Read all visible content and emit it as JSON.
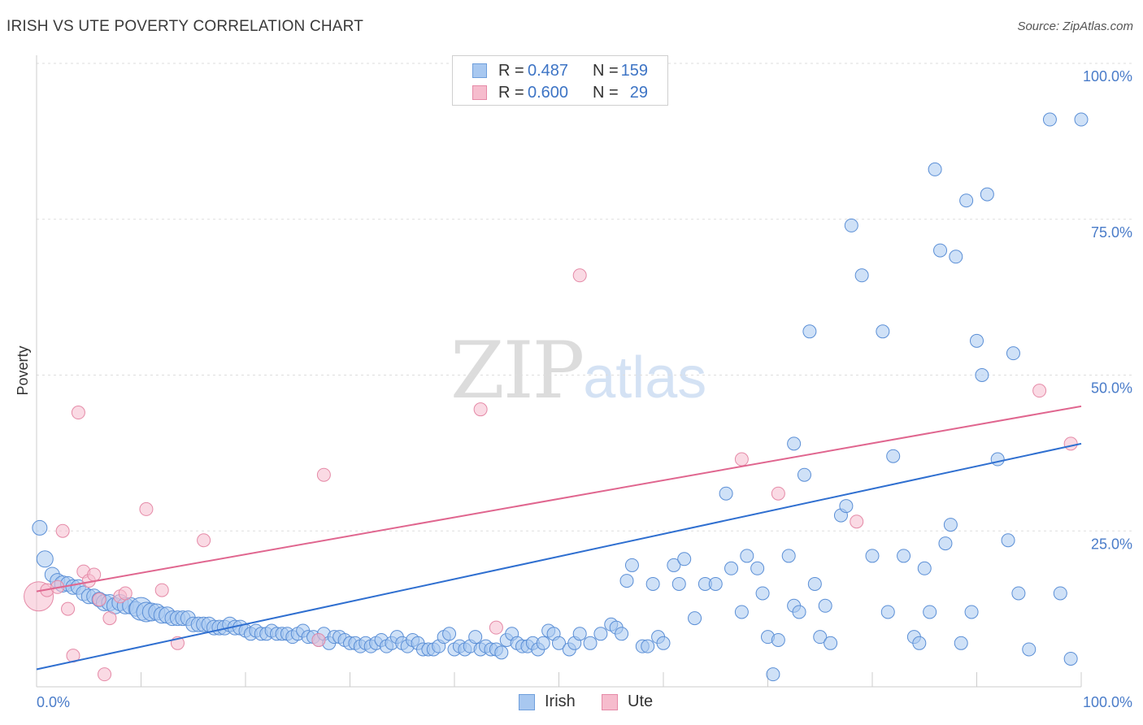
{
  "header": {
    "title": "IRISH VS UTE POVERTY CORRELATION CHART",
    "source": "Source: ZipAtlas.com"
  },
  "watermark": {
    "zip": "ZIP",
    "atlas": "atlas"
  },
  "legend": {
    "rows": [
      {
        "r_label": "R =",
        "r_value": "0.487",
        "n_label": "N =",
        "n_value": "159",
        "color": "#a8c8f0",
        "border": "#6f9fdc"
      },
      {
        "r_label": "R =",
        "r_value": "0.600",
        "n_label": "N =",
        "n_value": "29",
        "color": "#f6bccd",
        "border": "#e58aa7"
      }
    ]
  },
  "bottom_legend": [
    {
      "label": "Irish",
      "color": "#a8c8f0",
      "border": "#6f9fdc"
    },
    {
      "label": "Ute",
      "color": "#f6bccd",
      "border": "#e58aa7"
    }
  ],
  "chart_data": {
    "type": "scatter",
    "title": "IRISH VS UTE POVERTY CORRELATION CHART",
    "xlabel": "",
    "ylabel": "Poverty",
    "xlim": [
      0,
      100
    ],
    "ylim": [
      0,
      100
    ],
    "x_tick_labels": [
      "0.0%",
      "100.0%"
    ],
    "y_tick_labels": [
      "100.0%",
      "75.0%",
      "50.0%",
      "25.0%"
    ],
    "y_ticks": [
      100,
      75,
      50,
      25
    ],
    "grid": true,
    "legend_position": "top-center",
    "colors": {
      "irish_fill": "#a8c8f0",
      "irish_stroke": "#5b8fd6",
      "irish_line": "#2f6fd0",
      "ute_fill": "#f6bccd",
      "ute_stroke": "#e58aa7",
      "ute_line": "#e0668f",
      "tick_label": "#4a7cc9"
    },
    "series": [
      {
        "name": "Irish",
        "trendline": [
          [
            0,
            2.8
          ],
          [
            100,
            39
          ]
        ],
        "points": [
          [
            0.3,
            25.5,
            9
          ],
          [
            0.8,
            20.5,
            10
          ],
          [
            1.5,
            18,
            9
          ],
          [
            2,
            17,
            9
          ],
          [
            2.5,
            16.5,
            10
          ],
          [
            3,
            16.5,
            9
          ],
          [
            3.5,
            16,
            9
          ],
          [
            4,
            16,
            9
          ],
          [
            4.5,
            15,
            9
          ],
          [
            5,
            14.5,
            9
          ],
          [
            5.5,
            14.5,
            9
          ],
          [
            6,
            14,
            9
          ],
          [
            6.5,
            13.5,
            10
          ],
          [
            7,
            13.5,
            10
          ],
          [
            7.5,
            13,
            10
          ],
          [
            8,
            13.5,
            10
          ],
          [
            8.5,
            13,
            10
          ],
          [
            9,
            13,
            10
          ],
          [
            9.5,
            12.5,
            9
          ],
          [
            10,
            12.5,
            14
          ],
          [
            10.5,
            12,
            12
          ],
          [
            11,
            12,
            11
          ],
          [
            11.5,
            12,
            10
          ],
          [
            12,
            11.5,
            10
          ],
          [
            12.5,
            11.5,
            10
          ],
          [
            13,
            11,
            9
          ],
          [
            13.5,
            11,
            9
          ],
          [
            14,
            11,
            9
          ],
          [
            14.5,
            11,
            9
          ],
          [
            15,
            10,
            9
          ],
          [
            15.5,
            10,
            9
          ],
          [
            16,
            10,
            9
          ],
          [
            16.5,
            10,
            9
          ],
          [
            17,
            9.5,
            9
          ],
          [
            17.5,
            9.5,
            9
          ],
          [
            18,
            9.5,
            9
          ],
          [
            18.5,
            10,
            9
          ],
          [
            19,
            9.5,
            9
          ],
          [
            19.5,
            9.5,
            9
          ],
          [
            20,
            9,
            8
          ],
          [
            20.5,
            8.5,
            8
          ],
          [
            21,
            9,
            8
          ],
          [
            21.5,
            8.5,
            8
          ],
          [
            22,
            8.5,
            8
          ],
          [
            22.5,
            9,
            8
          ],
          [
            23,
            8.5,
            8
          ],
          [
            23.5,
            8.5,
            8
          ],
          [
            24,
            8.5,
            8
          ],
          [
            24.5,
            8,
            8
          ],
          [
            25,
            8.5,
            8
          ],
          [
            25.5,
            9,
            8
          ],
          [
            26,
            8,
            8
          ],
          [
            26.5,
            8,
            8
          ],
          [
            27,
            7.5,
            8
          ],
          [
            27.5,
            8.5,
            8
          ],
          [
            28,
            7,
            8
          ],
          [
            28.5,
            8,
            8
          ],
          [
            29,
            8,
            8
          ],
          [
            29.5,
            7.5,
            8
          ],
          [
            30,
            7,
            8
          ],
          [
            30.5,
            7,
            8
          ],
          [
            31,
            6.5,
            8
          ],
          [
            31.5,
            7,
            8
          ],
          [
            32,
            6.5,
            8
          ],
          [
            32.5,
            7,
            8
          ],
          [
            33,
            7.5,
            8
          ],
          [
            33.5,
            6.5,
            8
          ],
          [
            34,
            7,
            8
          ],
          [
            34.5,
            8,
            8
          ],
          [
            35,
            7,
            8
          ],
          [
            35.5,
            6.5,
            8
          ],
          [
            36,
            7.5,
            8
          ],
          [
            36.5,
            7,
            8
          ],
          [
            37,
            6,
            8
          ],
          [
            37.5,
            6,
            8
          ],
          [
            38,
            6,
            8
          ],
          [
            38.5,
            6.5,
            8
          ],
          [
            39,
            8,
            8
          ],
          [
            39.5,
            8.5,
            8
          ],
          [
            40,
            6,
            8
          ],
          [
            40.5,
            6.5,
            8
          ],
          [
            41,
            6,
            8
          ],
          [
            41.5,
            6.5,
            8
          ],
          [
            42,
            8,
            8
          ],
          [
            42.5,
            6,
            8
          ],
          [
            43,
            6.5,
            8
          ],
          [
            43.5,
            6,
            8
          ],
          [
            44,
            6,
            8
          ],
          [
            44.5,
            5.5,
            8
          ],
          [
            45,
            7.5,
            8
          ],
          [
            45.5,
            8.5,
            8
          ],
          [
            46,
            7,
            8
          ],
          [
            46.5,
            6.5,
            8
          ],
          [
            47,
            6.5,
            8
          ],
          [
            47.5,
            7,
            8
          ],
          [
            48,
            6,
            8
          ],
          [
            48.5,
            7,
            8
          ],
          [
            49,
            9,
            8
          ],
          [
            49.5,
            8.5,
            8
          ],
          [
            50,
            7,
            8
          ],
          [
            51,
            6,
            8
          ],
          [
            51.5,
            7,
            8
          ],
          [
            52,
            8.5,
            8
          ],
          [
            53,
            7,
            8
          ],
          [
            54,
            8.5,
            8
          ],
          [
            55,
            10,
            8
          ],
          [
            55.5,
            9.5,
            8
          ],
          [
            56,
            8.5,
            8
          ],
          [
            56.5,
            17,
            8
          ],
          [
            57,
            19.5,
            8
          ],
          [
            58,
            6.5,
            8
          ],
          [
            58.5,
            6.5,
            8
          ],
          [
            59,
            16.5,
            8
          ],
          [
            59.5,
            8,
            8
          ],
          [
            60,
            7,
            8
          ],
          [
            61,
            19.5,
            8
          ],
          [
            61.5,
            16.5,
            8
          ],
          [
            62,
            20.5,
            8
          ],
          [
            63,
            11,
            8
          ],
          [
            64,
            16.5,
            8
          ],
          [
            65,
            16.5,
            8
          ],
          [
            66,
            31,
            8
          ],
          [
            66.5,
            19,
            8
          ],
          [
            67.5,
            12,
            8
          ],
          [
            68,
            21,
            8
          ],
          [
            69,
            19,
            8
          ],
          [
            69.5,
            15,
            8
          ],
          [
            70,
            8,
            8
          ],
          [
            70.5,
            2,
            8
          ],
          [
            71,
            7.5,
            8
          ],
          [
            72,
            21,
            8
          ],
          [
            72.5,
            39,
            8
          ],
          [
            72.5,
            13,
            8
          ],
          [
            73,
            12,
            8
          ],
          [
            73.5,
            34,
            8
          ],
          [
            74,
            57,
            8
          ],
          [
            74.5,
            16.5,
            8
          ],
          [
            75,
            8,
            8
          ],
          [
            75.5,
            13,
            8
          ],
          [
            76,
            7,
            8
          ],
          [
            77,
            27.5,
            8
          ],
          [
            77.5,
            29,
            8
          ],
          [
            78,
            74,
            8
          ],
          [
            79,
            66,
            8
          ],
          [
            80,
            21,
            8
          ],
          [
            81,
            57,
            8
          ],
          [
            81.5,
            12,
            8
          ],
          [
            82,
            37,
            8
          ],
          [
            83,
            21,
            8
          ],
          [
            84,
            8,
            8
          ],
          [
            84.5,
            7,
            8
          ],
          [
            85,
            19,
            8
          ],
          [
            85.5,
            12,
            8
          ],
          [
            86,
            83,
            8
          ],
          [
            86.5,
            70,
            8
          ],
          [
            87,
            23,
            8
          ],
          [
            87.5,
            26,
            8
          ],
          [
            88,
            69,
            8
          ],
          [
            88.5,
            7,
            8
          ],
          [
            89,
            78,
            8
          ],
          [
            89.5,
            12,
            8
          ],
          [
            90,
            55.5,
            8
          ],
          [
            90.5,
            50,
            8
          ],
          [
            91,
            79,
            8
          ],
          [
            92,
            36.5,
            8
          ],
          [
            93,
            23.5,
            8
          ],
          [
            93.5,
            53.5,
            8
          ],
          [
            94,
            15,
            8
          ],
          [
            95,
            6,
            8
          ],
          [
            97,
            91,
            8
          ],
          [
            98,
            15,
            8
          ],
          [
            99,
            4.5,
            8
          ],
          [
            100,
            91,
            8
          ]
        ]
      },
      {
        "name": "Ute",
        "trendline": [
          [
            0,
            15.3
          ],
          [
            100,
            45
          ]
        ],
        "points": [
          [
            0.2,
            14.5,
            18
          ],
          [
            1,
            15.5,
            8
          ],
          [
            2,
            16,
            8
          ],
          [
            2.5,
            25,
            8
          ],
          [
            3,
            12.5,
            8
          ],
          [
            3.5,
            5,
            8
          ],
          [
            4,
            44,
            8
          ],
          [
            4.5,
            18.5,
            8
          ],
          [
            5,
            17,
            8
          ],
          [
            5.5,
            18,
            8
          ],
          [
            6,
            14,
            8
          ],
          [
            6.5,
            2,
            8
          ],
          [
            7,
            11,
            8
          ],
          [
            8,
            14.5,
            8
          ],
          [
            8.5,
            15,
            8
          ],
          [
            10.5,
            28.5,
            8
          ],
          [
            12,
            15.5,
            8
          ],
          [
            13.5,
            7,
            8
          ],
          [
            16,
            23.5,
            8
          ],
          [
            27,
            7.5,
            8
          ],
          [
            27.5,
            34,
            8
          ],
          [
            42.5,
            44.5,
            8
          ],
          [
            44,
            9.5,
            8
          ],
          [
            52,
            66,
            8
          ],
          [
            67.5,
            36.5,
            8
          ],
          [
            71,
            31,
            8
          ],
          [
            78.5,
            26.5,
            8
          ],
          [
            96,
            47.5,
            8
          ],
          [
            99,
            39,
            8
          ]
        ]
      }
    ]
  }
}
